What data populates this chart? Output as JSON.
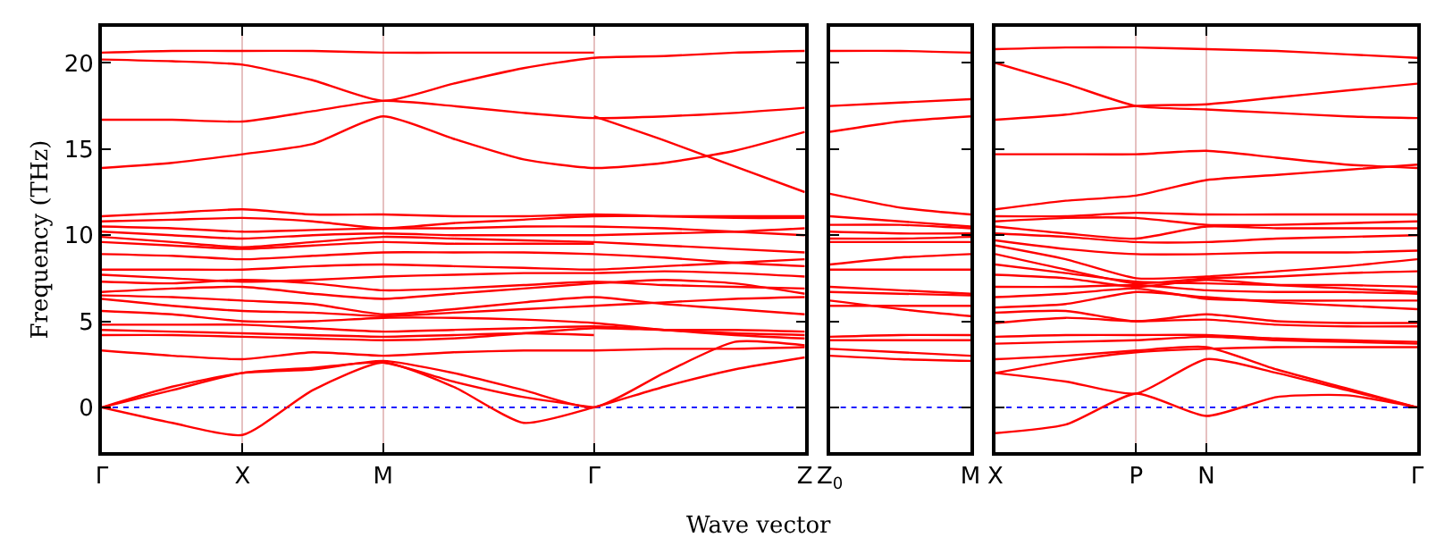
{
  "chart_data": [
    {
      "type": "line",
      "ylabel": "Frequency (THz)",
      "categories": [
        "Γ",
        null,
        "X",
        null,
        "M",
        null,
        null,
        "Γ",
        null,
        null,
        "Z"
      ],
      "ylim": [
        -2.6,
        22.1
      ],
      "yticks": [
        0,
        5,
        10,
        15,
        20
      ],
      "grid": "x",
      "line_style": "solid",
      "ref_lines": [
        {
          "axis": "y",
          "value": 0,
          "color": "#0000ff",
          "line_style": "dotted"
        }
      ],
      "series": [
        {
          "color": "#ff0000",
          "values": [
            20.6,
            20.7,
            20.7,
            20.7,
            20.6,
            20.6,
            20.6,
            20.6,
            null,
            null,
            null
          ]
        },
        {
          "color": "#ff0000",
          "values": [
            20.2,
            20.1,
            19.9,
            19.0,
            17.8,
            18.8,
            19.7,
            20.3,
            20.4,
            20.6,
            20.7
          ]
        },
        {
          "color": "#ff0000",
          "values": [
            16.7,
            16.7,
            16.6,
            17.2,
            17.8,
            17.5,
            17.1,
            16.8,
            16.9,
            17.1,
            17.4
          ]
        },
        {
          "color": "#ff0000",
          "values": [
            13.9,
            14.2,
            14.7,
            15.3,
            16.9,
            15.6,
            14.4,
            13.9,
            14.2,
            14.9,
            16.0
          ]
        },
        {
          "color": "#ff0000",
          "values": [
            null,
            null,
            null,
            null,
            null,
            null,
            null,
            16.9,
            15.5,
            14.0,
            12.5
          ]
        },
        {
          "color": "#ff0000",
          "values": [
            11.1,
            11.3,
            11.5,
            11.2,
            11.2,
            11.1,
            11.1,
            11.2,
            11.1,
            11.0,
            11.0
          ]
        },
        {
          "color": "#ff0000",
          "values": [
            10.8,
            10.9,
            11.0,
            10.8,
            10.4,
            10.7,
            10.9,
            11.1,
            11.1,
            11.1,
            11.1
          ]
        },
        {
          "color": "#ff0000",
          "values": [
            10.5,
            10.4,
            10.2,
            10.3,
            10.4,
            10.4,
            10.5,
            10.5,
            10.4,
            10.2,
            10.0
          ]
        },
        {
          "color": "#ff0000",
          "values": [
            10.2,
            10.0,
            9.8,
            10.0,
            10.1,
            10.0,
            10.0,
            10.0,
            10.1,
            10.2,
            10.4
          ]
        },
        {
          "color": "#ff0000",
          "values": [
            9.9,
            9.6,
            9.3,
            9.6,
            9.9,
            9.8,
            9.7,
            9.6,
            9.4,
            9.2,
            9.0
          ]
        },
        {
          "color": "#ff0000",
          "values": [
            9.6,
            9.4,
            9.2,
            9.4,
            9.6,
            9.5,
            9.5,
            9.5,
            null,
            null,
            null
          ]
        },
        {
          "color": "#ff0000",
          "values": [
            8.9,
            8.8,
            8.6,
            8.8,
            9.0,
            9.0,
            9.0,
            8.9,
            8.7,
            8.4,
            8.2
          ]
        },
        {
          "color": "#ff0000",
          "values": [
            8.0,
            8.0,
            8.0,
            8.2,
            8.3,
            8.2,
            8.1,
            8.0,
            8.2,
            8.4,
            8.6
          ]
        },
        {
          "color": "#ff0000",
          "values": [
            7.7,
            7.5,
            7.3,
            7.4,
            7.6,
            7.7,
            7.8,
            7.8,
            7.9,
            7.8,
            7.6
          ]
        },
        {
          "color": "#ff0000",
          "values": [
            7.3,
            7.2,
            7.4,
            7.2,
            6.8,
            6.9,
            7.1,
            7.3,
            7.1,
            7.0,
            6.9
          ]
        },
        {
          "color": "#ff0000",
          "values": [
            6.7,
            6.9,
            7.0,
            6.6,
            6.3,
            6.6,
            6.9,
            7.2,
            7.4,
            7.2,
            6.6
          ]
        },
        {
          "color": "#ff0000",
          "values": [
            6.5,
            6.4,
            6.2,
            6.0,
            5.4,
            5.7,
            6.1,
            6.4,
            6.0,
            5.7,
            5.4
          ]
        },
        {
          "color": "#ff0000",
          "values": [
            6.3,
            5.9,
            5.6,
            5.5,
            5.3,
            5.5,
            5.7,
            5.9,
            6.1,
            6.3,
            6.4
          ]
        },
        {
          "color": "#ff0000",
          "values": [
            5.6,
            5.4,
            5.0,
            5.0,
            5.2,
            5.2,
            5.1,
            4.9,
            4.5,
            4.2,
            4.0
          ]
        },
        {
          "color": "#ff0000",
          "values": [
            4.8,
            4.8,
            4.8,
            4.6,
            4.4,
            4.5,
            4.6,
            4.7,
            4.5,
            4.3,
            4.2
          ]
        },
        {
          "color": "#ff0000",
          "values": [
            4.5,
            4.4,
            4.3,
            4.2,
            4.1,
            4.2,
            4.3,
            4.2,
            null,
            null,
            null
          ]
        },
        {
          "color": "#ff0000",
          "values": [
            4.2,
            4.2,
            4.1,
            4.0,
            3.9,
            4.0,
            4.3,
            4.6,
            4.5,
            4.5,
            4.4
          ]
        },
        {
          "color": "#ff0000",
          "values": [
            3.3,
            3.0,
            2.8,
            3.2,
            3.0,
            3.2,
            3.3,
            3.3,
            3.4,
            3.4,
            3.5
          ]
        },
        {
          "color": "#ff0000",
          "values": [
            0,
            1.2,
            2.0,
            2.2,
            2.7,
            2.0,
            1.0,
            0,
            2.0,
            3.8,
            3.6
          ]
        },
        {
          "color": "#ff0000",
          "values": [
            0,
            1.0,
            2.0,
            2.3,
            2.6,
            1.5,
            0.6,
            0,
            null,
            null,
            null
          ]
        },
        {
          "color": "#ff0000",
          "values": [
            0,
            -0.9,
            -1.6,
            1.0,
            2.6,
            1.2,
            -0.9,
            0,
            1.2,
            2.2,
            2.9
          ]
        }
      ]
    },
    {
      "type": "line",
      "xlabel": "Wave vector",
      "categories": [
        "Z$_{0}$",
        null,
        "M"
      ],
      "ylim": [
        -2.6,
        22.1
      ],
      "yticks": [
        {
          "value": 0,
          "label": null
        },
        {
          "value": 5,
          "label": null
        },
        {
          "value": 10,
          "label": null
        },
        {
          "value": 15,
          "label": null
        },
        {
          "value": 20,
          "label": null
        }
      ],
      "tick_labels": "x",
      "line_style": "solid",
      "ref_lines": [
        {
          "axis": "y",
          "value": 0,
          "color": "#0000ff",
          "line_style": "dotted"
        }
      ],
      "series": [
        {
          "color": "#ff0000",
          "values": [
            20.7,
            20.7,
            20.6
          ]
        },
        {
          "color": "#ff0000",
          "values": [
            17.5,
            17.7,
            17.9
          ]
        },
        {
          "color": "#ff0000",
          "values": [
            16.0,
            16.6,
            16.9
          ]
        },
        {
          "color": "#ff0000",
          "values": [
            12.4,
            11.6,
            11.2
          ]
        },
        {
          "color": "#ff0000",
          "values": [
            11.1,
            10.8,
            10.5
          ]
        },
        {
          "color": "#ff0000",
          "values": [
            10.6,
            10.6,
            10.4
          ]
        },
        {
          "color": "#ff0000",
          "values": [
            10.2,
            10.1,
            10.1
          ]
        },
        {
          "color": "#ff0000",
          "values": [
            9.8,
            9.8,
            9.9
          ]
        },
        {
          "color": "#ff0000",
          "values": [
            9.6,
            9.6,
            9.6
          ]
        },
        {
          "color": "#ff0000",
          "values": [
            8.3,
            8.7,
            8.9
          ]
        },
        {
          "color": "#ff0000",
          "values": [
            8.0,
            8.0,
            8.0
          ]
        },
        {
          "color": "#ff0000",
          "values": [
            7.0,
            6.8,
            6.6
          ]
        },
        {
          "color": "#ff0000",
          "values": [
            6.7,
            6.6,
            6.5
          ]
        },
        {
          "color": "#ff0000",
          "values": [
            6.2,
            5.7,
            5.3
          ]
        },
        {
          "color": "#ff0000",
          "values": [
            5.9,
            5.9,
            5.9
          ]
        },
        {
          "color": "#ff0000",
          "values": [
            4.1,
            4.2,
            4.2
          ]
        },
        {
          "color": "#ff0000",
          "values": [
            3.9,
            3.9,
            3.9
          ]
        },
        {
          "color": "#ff0000",
          "values": [
            3.4,
            3.2,
            3.0
          ]
        },
        {
          "color": "#ff0000",
          "values": [
            3.0,
            2.8,
            2.7
          ]
        }
      ]
    },
    {
      "type": "line",
      "categories": [
        "X",
        null,
        "P",
        "N",
        null,
        null,
        "Γ"
      ],
      "ylim": [
        -2.6,
        22.1
      ],
      "yticks": [
        {
          "value": 0,
          "label": null
        },
        {
          "value": 5,
          "label": null
        },
        {
          "value": 10,
          "label": null
        },
        {
          "value": 15,
          "label": null
        },
        {
          "value": 20,
          "label": null
        }
      ],
      "tick_labels": "x",
      "grid": "x",
      "line_style": "solid",
      "ref_lines": [
        {
          "axis": "y",
          "value": 0,
          "color": "#0000ff",
          "line_style": "dotted"
        }
      ],
      "series": [
        {
          "color": "#ff0000",
          "values": [
            20.8,
            20.9,
            20.9,
            20.8,
            20.7,
            20.5,
            20.3
          ]
        },
        {
          "color": "#ff0000",
          "values": [
            20.0,
            18.8,
            17.5,
            17.3,
            17.1,
            16.9,
            16.8
          ]
        },
        {
          "color": "#ff0000",
          "values": [
            16.7,
            17.0,
            17.5,
            17.6,
            18.0,
            18.4,
            18.8
          ]
        },
        {
          "color": "#ff0000",
          "values": [
            14.7,
            14.7,
            14.7,
            14.9,
            14.5,
            14.1,
            13.9
          ]
        },
        {
          "color": "#ff0000",
          "values": [
            11.5,
            12.0,
            12.3,
            13.2,
            13.5,
            13.8,
            14.1
          ]
        },
        {
          "color": "#ff0000",
          "values": [
            11.1,
            11.1,
            11.3,
            11.2,
            11.2,
            11.2,
            11.2
          ]
        },
        {
          "color": "#ff0000",
          "values": [
            10.8,
            11.0,
            11.0,
            10.6,
            10.6,
            10.7,
            10.8
          ]
        },
        {
          "color": "#ff0000",
          "values": [
            10.5,
            10.1,
            9.8,
            10.5,
            10.4,
            10.4,
            10.4
          ]
        },
        {
          "color": "#ff0000",
          "values": [
            10.1,
            9.9,
            9.6,
            9.6,
            9.8,
            9.9,
            10.0
          ]
        },
        {
          "color": "#ff0000",
          "values": [
            9.7,
            9.2,
            8.9,
            8.9,
            9.0,
            9.0,
            9.1
          ]
        },
        {
          "color": "#ff0000",
          "values": [
            9.4,
            8.6,
            7.5,
            7.6,
            7.9,
            8.2,
            8.6
          ]
        },
        {
          "color": "#ff0000",
          "values": [
            8.9,
            8.0,
            7.2,
            7.5,
            7.6,
            7.8,
            7.9
          ]
        },
        {
          "color": "#ff0000",
          "values": [
            8.3,
            7.8,
            7.3,
            7.2,
            7.1,
            7.1,
            7.0
          ]
        },
        {
          "color": "#ff0000",
          "values": [
            7.7,
            7.5,
            7.0,
            7.4,
            7.1,
            6.9,
            6.7
          ]
        },
        {
          "color": "#ff0000",
          "values": [
            7.0,
            7.0,
            7.1,
            6.8,
            6.7,
            6.7,
            6.6
          ]
        },
        {
          "color": "#ff0000",
          "values": [
            6.4,
            6.6,
            6.9,
            6.3,
            6.2,
            6.2,
            6.2
          ]
        },
        {
          "color": "#ff0000",
          "values": [
            5.8,
            6.0,
            6.7,
            6.4,
            6.1,
            5.9,
            5.7
          ]
        },
        {
          "color": "#ff0000",
          "values": [
            5.5,
            5.6,
            5.0,
            5.4,
            5.0,
            4.9,
            4.9
          ]
        },
        {
          "color": "#ff0000",
          "values": [
            4.9,
            5.2,
            5.0,
            5.1,
            4.8,
            4.7,
            4.7
          ]
        },
        {
          "color": "#ff0000",
          "values": [
            4.1,
            4.2,
            4.2,
            4.2,
            4.0,
            3.9,
            3.8
          ]
        },
        {
          "color": "#ff0000",
          "values": [
            3.7,
            3.8,
            3.9,
            4.1,
            3.9,
            3.8,
            3.7
          ]
        },
        {
          "color": "#ff0000",
          "values": [
            2.0,
            2.7,
            3.2,
            3.4,
            3.5,
            3.5,
            3.5
          ]
        },
        {
          "color": "#ff0000",
          "values": [
            2.8,
            3.0,
            3.3,
            3.5,
            2.2,
            1.1,
            0
          ]
        },
        {
          "color": "#ff0000",
          "values": [
            2.0,
            1.5,
            0.8,
            2.8,
            2.0,
            1.0,
            0
          ]
        },
        {
          "color": "#ff0000",
          "values": [
            -1.5,
            -1.0,
            0.8,
            -0.5,
            0.6,
            0.7,
            0
          ]
        }
      ]
    }
  ]
}
